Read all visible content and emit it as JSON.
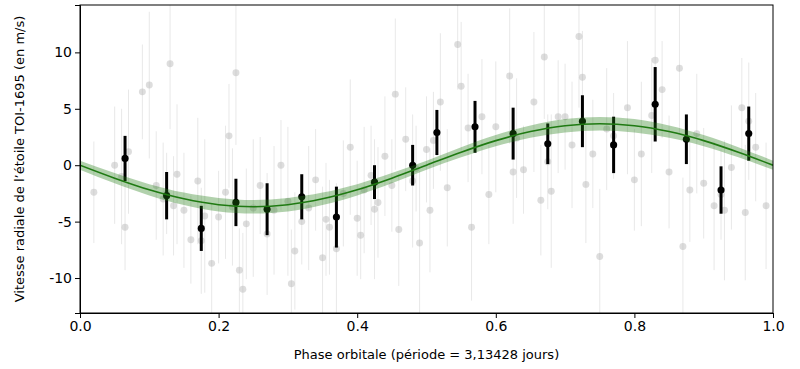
{
  "chart_data": {
    "type": "scatter",
    "x_label": "Phase orbitale (période = 3,13428 jours)",
    "y_label": "Vitesse radiale de l’étoile TOI-1695 (en m/s)",
    "xlim": [
      0,
      1
    ],
    "ylim": [
      -13.1,
      14.2
    ],
    "xticks": [
      {
        "value": 0,
        "label": "0.0"
      },
      {
        "value": 0.2,
        "label": "0.2"
      },
      {
        "value": 0.4,
        "label": "0.4"
      },
      {
        "value": 0.6,
        "label": "0.6"
      },
      {
        "value": 0.8,
        "label": "0.8"
      },
      {
        "value": 1,
        "label": "1.0"
      }
    ],
    "yticks": [
      -10,
      -5,
      0,
      5,
      10
    ],
    "grid": false,
    "series": [
      {
        "type": "scatter",
        "marker": "circle",
        "color": "#b3b3b3",
        "x": [
          0.02,
          0.05,
          0.06,
          0.065,
          0.07,
          0.09,
          0.1,
          0.11,
          0.12,
          0.125,
          0.13,
          0.135,
          0.14,
          0.15,
          0.16,
          0.17,
          0.175,
          0.18,
          0.19,
          0.2,
          0.21,
          0.215,
          0.22,
          0.225,
          0.23,
          0.235,
          0.24,
          0.25,
          0.26,
          0.27,
          0.28,
          0.29,
          0.3,
          0.305,
          0.31,
          0.32,
          0.33,
          0.34,
          0.35,
          0.355,
          0.36,
          0.37,
          0.38,
          0.39,
          0.4,
          0.405,
          0.41,
          0.42,
          0.425,
          0.43,
          0.44,
          0.45,
          0.455,
          0.46,
          0.47,
          0.48,
          0.485,
          0.49,
          0.5,
          0.505,
          0.51,
          0.52,
          0.53,
          0.545,
          0.55,
          0.56,
          0.565,
          0.58,
          0.59,
          0.6,
          0.62,
          0.625,
          0.63,
          0.64,
          0.655,
          0.665,
          0.67,
          0.675,
          0.68,
          0.69,
          0.7,
          0.71,
          0.72,
          0.725,
          0.73,
          0.74,
          0.75,
          0.76,
          0.77,
          0.79,
          0.8,
          0.81,
          0.825,
          0.83,
          0.84,
          0.85,
          0.865,
          0.87,
          0.88,
          0.89,
          0.9,
          0.915,
          0.925,
          0.93,
          0.94,
          0.955,
          0.96,
          0.965,
          0.975,
          0.99
        ],
        "values": [
          -2.4,
          0.0,
          -1.0,
          -5.5,
          1.2,
          6.5,
          7.1,
          -1.8,
          -3.0,
          -2.5,
          9.0,
          -3.6,
          -0.8,
          -4.0,
          -6.6,
          -1.4,
          -6.7,
          -4.5,
          -8.7,
          -4.6,
          -2.4,
          2.6,
          -3.7,
          8.2,
          -9.3,
          -11.0,
          -5.2,
          -3.8,
          -1.8,
          -6.1,
          -4.0,
          0.0,
          -3.2,
          -10.5,
          -7.6,
          -5.0,
          -3.8,
          -1.3,
          -8.2,
          -4.8,
          -5.5,
          -7.4,
          -2.5,
          1.6,
          -4.7,
          -6.2,
          -2.2,
          -0.9,
          -3.9,
          -3.3,
          0.8,
          -1.8,
          6.3,
          -5.7,
          2.3,
          -1.4,
          -0.3,
          -6.9,
          1.4,
          -4.0,
          2.2,
          5.6,
          -2.0,
          10.7,
          7.0,
          3.3,
          -5.5,
          4.3,
          -2.6,
          3.4,
          7.9,
          -0.6,
          2.4,
          -0.4,
          5.6,
          -3.1,
          9.6,
          0.3,
          -2.3,
          4.3,
          4.3,
          1.8,
          11.4,
          7.8,
          -1.7,
          1.0,
          -8.1,
          3.2,
          2.6,
          5.1,
          -1.3,
          1.0,
          4.4,
          9.3,
          6.7,
          -0.6,
          8.6,
          -7.2,
          -2.2,
          2.8,
          -1.6,
          -3.6,
          -2.6,
          -4.0,
          -0.2,
          5.1,
          -4.2,
          3.9,
          1.6,
          -3.6
        ],
        "error": [
          4.5,
          5.2,
          6.0,
          3.8,
          5.5,
          4.2,
          6.5,
          4.8,
          5.0,
          3.6,
          5.8,
          4.4,
          6.2,
          5.1,
          3.9,
          5.6,
          4.7,
          6.8,
          5.3,
          4.1,
          5.9,
          4.6,
          5.2,
          6.4,
          3.7,
          5.0,
          4.9,
          6.1,
          4.3,
          5.4,
          5.7,
          4.0,
          6.6,
          4.8,
          5.2,
          3.8,
          5.5,
          4.5,
          6.3,
          5.0,
          4.2,
          5.8,
          4.7,
          6.0,
          5.1,
          3.9,
          5.6,
          4.4,
          6.2,
          4.9,
          5.3,
          4.1,
          6.7,
          5.0,
          4.6,
          5.9,
          3.8,
          6.4,
          4.7,
          5.5,
          4.3,
          6.1,
          5.2,
          4.0,
          5.7,
          4.8,
          6.5,
          5.1,
          4.4,
          5.8,
          6.0,
          4.6,
          5.3,
          3.9,
          6.2,
          4.9,
          5.5,
          4.2,
          6.8,
          5.0,
          4.7,
          5.6,
          6.3,
          4.1,
          5.2,
          4.8,
          6.0,
          5.4,
          3.8,
          5.9,
          4.5,
          6.4,
          5.1,
          6.7,
          4.3,
          5.0,
          5.8,
          6.1,
          4.6,
          5.3,
          4.9,
          5.7,
          4.0,
          6.2,
          5.5,
          4.4,
          6.0,
          5.2,
          4.8,
          5.6
        ]
      },
      {
        "type": "scatter",
        "marker": "circle",
        "color": "#000000",
        "x": [
          0.065,
          0.125,
          0.175,
          0.225,
          0.27,
          0.32,
          0.37,
          0.425,
          0.48,
          0.515,
          0.57,
          0.625,
          0.675,
          0.725,
          0.77,
          0.83,
          0.875,
          0.925,
          0.965
        ],
        "values": [
          0.6,
          -2.7,
          -5.6,
          -3.3,
          -3.9,
          -2.8,
          -4.6,
          -1.5,
          0.0,
          2.9,
          3.4,
          2.8,
          1.9,
          3.9,
          1.8,
          5.4,
          2.3,
          -2.2,
          2.8
        ],
        "error": [
          2.0,
          2.1,
          2.0,
          2.1,
          2.3,
          2.0,
          2.7,
          1.5,
          1.8,
          2.0,
          2.3,
          2.3,
          1.8,
          2.3,
          2.5,
          3.3,
          2.2,
          2.1,
          2.4
        ]
      },
      {
        "type": "line",
        "line_style": "solid",
        "color": "#1f7a12",
        "x": [
          0,
          0.05,
          0.1,
          0.15,
          0.2,
          0.25,
          0.3,
          0.35,
          0.4,
          0.45,
          0.5,
          0.55,
          0.6,
          0.65,
          0.7,
          0.75,
          0.8,
          0.85,
          0.9,
          0.95,
          1
        ],
        "values": [
          0,
          -1.15,
          -2.18,
          -2.98,
          -3.5,
          -3.68,
          -3.5,
          -2.98,
          -2.18,
          -1.15,
          0,
          1.15,
          2.18,
          2.98,
          3.5,
          3.68,
          3.5,
          2.98,
          2.18,
          1.15,
          0
        ],
        "error": [
          0.4,
          0.45,
          0.5,
          0.55,
          0.6,
          0.6,
          0.6,
          0.55,
          0.5,
          0.45,
          0.4,
          0.45,
          0.5,
          0.55,
          0.6,
          0.6,
          0.6,
          0.55,
          0.5,
          0.45,
          0.4
        ]
      }
    ]
  }
}
